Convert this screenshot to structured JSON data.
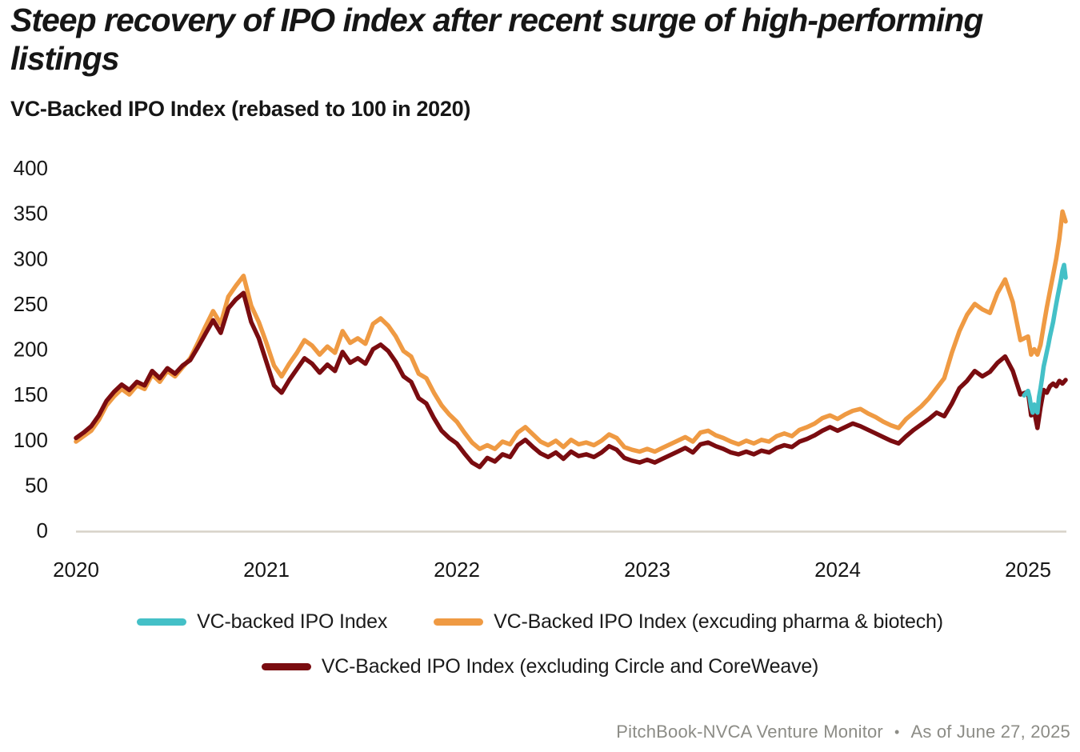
{
  "title": "Steep recovery of IPO index after recent surge of high-performing listings",
  "subtitle": "VC-Backed IPO Index (rebased to 100 in 2020)",
  "footer": {
    "source": "PitchBook-NVCA Venture Monitor",
    "separator": "•",
    "as_of": "As of June 27, 2025"
  },
  "colors": {
    "axis_line": "#D7D2C8",
    "tick_text": "#161616",
    "footer_text": "#8C8C86"
  },
  "chart_data": {
    "type": "line",
    "title": "VC-Backed IPO Index (rebased to 100 in 2020)",
    "xlabel": "",
    "ylabel": "",
    "grid": false,
    "legend_position": "bottom",
    "ylim": [
      0,
      400
    ],
    "y_ticks": [
      400,
      350,
      300,
      250,
      200,
      150,
      100,
      50,
      0
    ],
    "x_ticks": [
      "2020",
      "2021",
      "2022",
      "2023",
      "2024",
      "2025"
    ],
    "x_range_years": [
      2020.0,
      2025.49
    ],
    "series": [
      {
        "name": "VC-backed IPO Index",
        "color": "#44C0C7",
        "start": 2024.98,
        "step": 0.02,
        "values": [
          149,
          154,
          147,
          136,
          130,
          139,
          134,
          130,
          147,
          157,
          168,
          181,
          189,
          197,
          205,
          214,
          222,
          230,
          240,
          250,
          259,
          268,
          277,
          287,
          293,
          279
        ]
      },
      {
        "name": "VC-Backed IPO Index (excuding pharma & biotech)",
        "color": "#EF9A43",
        "start": 2020.0,
        "step": 0.04,
        "values": [
          98,
          104,
          110,
          122,
          138,
          148,
          156,
          150,
          160,
          156,
          172,
          164,
          176,
          170,
          180,
          190,
          207,
          225,
          242,
          228,
          258,
          270,
          281,
          248,
          230,
          207,
          182,
          170,
          184,
          196,
          210,
          204,
          194,
          203,
          196,
          220,
          207,
          212,
          206,
          228,
          234,
          226,
          214,
          198,
          192,
          173,
          168,
          152,
          138,
          128,
          120,
          108,
          97,
          90,
          94,
          90,
          98,
          95,
          108,
          114,
          106,
          98,
          94,
          99,
          92,
          100,
          95,
          97,
          94,
          99,
          106,
          102,
          92,
          89,
          87,
          90,
          87,
          91,
          95,
          99,
          103,
          98,
          108,
          110,
          105,
          102,
          98,
          95,
          99,
          96,
          100,
          98,
          104,
          107,
          104,
          111,
          114,
          118,
          124,
          127,
          123,
          128,
          132,
          134,
          129,
          125,
          120,
          116,
          113,
          123,
          130,
          137,
          146,
          157,
          168,
          196,
          220,
          238,
          250,
          244,
          240,
          262,
          277,
          252,
          210,
          214,
          194,
          200,
          194,
          205,
          226,
          246,
          264,
          282,
          300,
          322,
          352,
          341
        ]
      },
      {
        "name": "VC-Backed IPO Index (excluding Circle and CoreWeave)",
        "color": "#7A0C10",
        "start": 2020.0,
        "step": 0.04,
        "values": [
          102,
          108,
          115,
          127,
          143,
          153,
          161,
          155,
          164,
          160,
          176,
          168,
          179,
          173,
          182,
          188,
          202,
          217,
          232,
          218,
          245,
          255,
          262,
          230,
          212,
          186,
          160,
          152,
          166,
          178,
          190,
          184,
          174,
          183,
          176,
          197,
          185,
          190,
          184,
          200,
          205,
          198,
          186,
          170,
          164,
          146,
          140,
          124,
          110,
          102,
          96,
          85,
          75,
          70,
          80,
          76,
          84,
          81,
          94,
          100,
          92,
          85,
          81,
          86,
          79,
          87,
          82,
          84,
          81,
          86,
          93,
          89,
          80,
          77,
          75,
          78,
          75,
          79,
          83,
          87,
          91,
          86,
          95,
          97,
          93,
          90,
          86,
          84,
          87,
          84,
          88,
          86,
          91,
          94,
          92,
          98,
          101,
          105,
          110,
          114,
          110,
          114,
          118,
          115,
          111,
          107,
          103,
          99,
          96,
          104,
          111,
          117,
          123,
          130,
          126,
          140,
          157,
          165,
          176,
          170,
          175,
          185,
          192,
          176,
          150,
          153,
          127,
          131,
          113,
          136,
          155,
          152,
          159,
          162,
          159,
          165,
          162,
          166
        ]
      }
    ]
  }
}
